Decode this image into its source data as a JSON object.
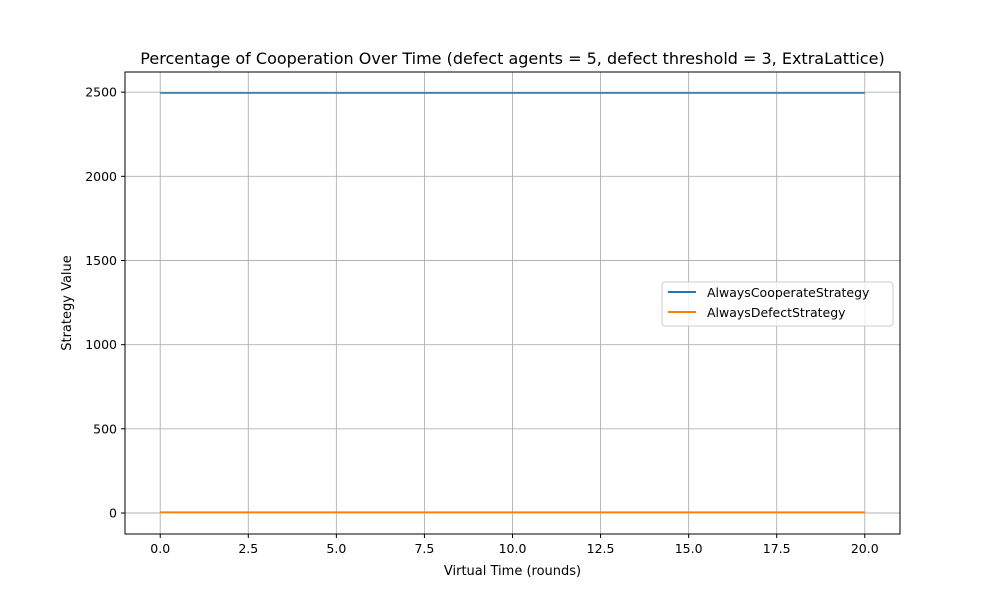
{
  "chart_data": {
    "type": "line",
    "title": "Percentage of Cooperation Over Time (defect agents = 5, defect threshold = 3, ExtraLattice)",
    "xlabel": "Virtual Time (rounds)",
    "ylabel": "Strategy Value",
    "xlim": [
      -1,
      21
    ],
    "ylim": [
      -124.75,
      2619.75
    ],
    "xticks": [
      0,
      2.5,
      5,
      7.5,
      10,
      12.5,
      15,
      17.5,
      20
    ],
    "xtick_labels": [
      "0.0",
      "2.5",
      "5.0",
      "7.5",
      "10.0",
      "12.5",
      "15.0",
      "17.5",
      "20.0"
    ],
    "yticks": [
      0,
      500,
      1000,
      1500,
      2000,
      2500
    ],
    "ytick_labels": [
      "0",
      "500",
      "1000",
      "1500",
      "2000",
      "2500"
    ],
    "grid": true,
    "legend_position": "center-right",
    "x": [
      0,
      1,
      2,
      3,
      4,
      5,
      6,
      7,
      8,
      9,
      10,
      11,
      12,
      13,
      14,
      15,
      16,
      17,
      18,
      19,
      20
    ],
    "series": [
      {
        "name": "AlwaysCooperateStrategy",
        "color": "#1f77b4",
        "values": [
          2495,
          2495,
          2495,
          2495,
          2495,
          2495,
          2495,
          2495,
          2495,
          2495,
          2495,
          2495,
          2495,
          2495,
          2495,
          2495,
          2495,
          2495,
          2495,
          2495,
          2495
        ]
      },
      {
        "name": "AlwaysDefectStrategy",
        "color": "#ff7f0e",
        "values": [
          5,
          5,
          5,
          5,
          5,
          5,
          5,
          5,
          5,
          5,
          5,
          5,
          5,
          5,
          5,
          5,
          5,
          5,
          5,
          5,
          5
        ]
      }
    ]
  }
}
